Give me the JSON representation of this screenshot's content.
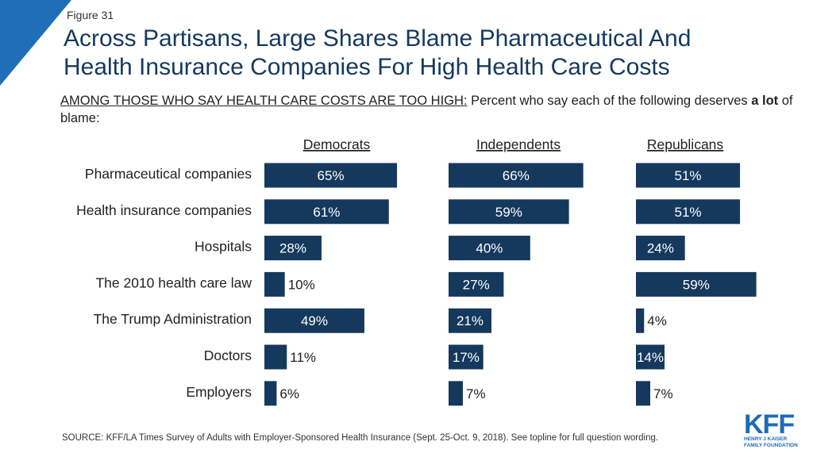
{
  "figure_label": "Figure 31",
  "title_line1": "Across Partisans, Large Shares Blame Pharmaceutical And",
  "title_line2": "Health Insurance Companies For High Health Care Costs",
  "subtitle_lead": "AMONG THOSE WHO SAY HEALTH CARE COSTS ARE TOO HIGH:",
  "subtitle_mid": " Percent who say each of the following deserves ",
  "subtitle_bold": "a lot",
  "subtitle_end": " of blame:",
  "source": "SOURCE: KFF/LA Times Survey of Adults with Employer-Sponsored Health Insurance  (Sept. 25-Oct. 9, 2018). See topline for full question wording.",
  "logo": {
    "main": "KFF",
    "line1": "HENRY J KAISER",
    "line2": "FAMILY FOUNDATION"
  },
  "colors": {
    "bar": "#15395d",
    "accent": "#1f6fb8",
    "title": "#15395d"
  },
  "chart_data": {
    "type": "bar",
    "orientation": "horizontal",
    "categories": [
      "Pharmaceutical companies",
      "Health insurance companies",
      "Hospitals",
      "The 2010 health care law",
      "The Trump Administration",
      "Doctors",
      "Employers"
    ],
    "series": [
      {
        "name": "Democrats",
        "values": [
          65,
          61,
          28,
          10,
          49,
          11,
          6
        ]
      },
      {
        "name": "Independents",
        "values": [
          66,
          59,
          40,
          27,
          21,
          17,
          7
        ]
      },
      {
        "name": "Republicans",
        "values": [
          51,
          51,
          24,
          59,
          4,
          14,
          7
        ]
      }
    ],
    "value_suffix": "%",
    "xlim": [
      0,
      100
    ],
    "grid": false,
    "legend": "none"
  }
}
